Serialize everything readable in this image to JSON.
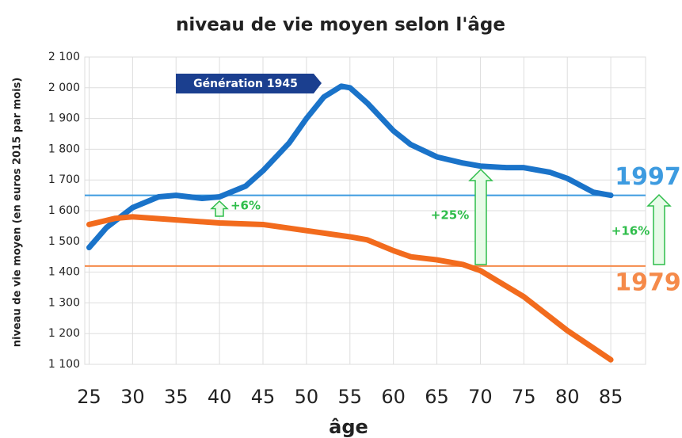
{
  "chart_data": {
    "type": "line",
    "title": "niveau de vie moyen selon l'âge",
    "ylabel": "niveau de vie moyen (en euros 2015 par mois)",
    "xlabel": "âge",
    "xlim": [
      24.5,
      89
    ],
    "xticks": [
      25,
      30,
      35,
      40,
      45,
      50,
      55,
      60,
      65,
      70,
      75,
      80,
      85
    ],
    "ylim": [
      1100,
      2100
    ],
    "yticks": [
      {
        "value": 1100,
        "label": "1 100"
      },
      {
        "value": 1200,
        "label": "1 200"
      },
      {
        "value": 1300,
        "label": "1 300"
      },
      {
        "value": 1400,
        "label": "1 400"
      },
      {
        "value": 1500,
        "label": "1 500"
      },
      {
        "value": 1600,
        "label": "1 600"
      },
      {
        "value": 1700,
        "label": "1 700"
      },
      {
        "value": 1800,
        "label": "1 800"
      },
      {
        "value": 1900,
        "label": "1 900"
      },
      {
        "value": 2000,
        "label": "2 000"
      },
      {
        "value": 2100,
        "label": "2 100"
      }
    ],
    "grid": true,
    "series": [
      {
        "name": "Génération 1945",
        "color": "#1a73c9",
        "x": [
          25,
          27,
          30,
          33,
          35,
          38,
          40,
          43,
          45,
          48,
          50,
          52,
          54,
          55,
          57,
          60,
          62,
          65,
          68,
          70,
          73,
          75,
          78,
          80,
          83,
          85
        ],
        "values": [
          1480,
          1545,
          1610,
          1645,
          1650,
          1640,
          1645,
          1680,
          1730,
          1820,
          1900,
          1970,
          2005,
          2000,
          1950,
          1860,
          1815,
          1775,
          1755,
          1745,
          1740,
          1740,
          1725,
          1705,
          1660,
          1650
        ]
      },
      {
        "color": "#f26b1d",
        "x": [
          25,
          28,
          30,
          35,
          40,
          45,
          50,
          55,
          57,
          60,
          62,
          65,
          68,
          70,
          75,
          80,
          85
        ],
        "values": [
          1555,
          1575,
          1580,
          1570,
          1560,
          1555,
          1535,
          1515,
          1505,
          1470,
          1450,
          1440,
          1425,
          1405,
          1320,
          1210,
          1115
        ]
      }
    ],
    "reference_lines": [
      {
        "label": "1997",
        "value": 1650,
        "color": "#3d9be0"
      },
      {
        "label": "1979",
        "value": 1420,
        "color": "#f58a4a"
      }
    ],
    "annotations": [
      "+6%",
      "+25%",
      "+16%"
    ]
  }
}
